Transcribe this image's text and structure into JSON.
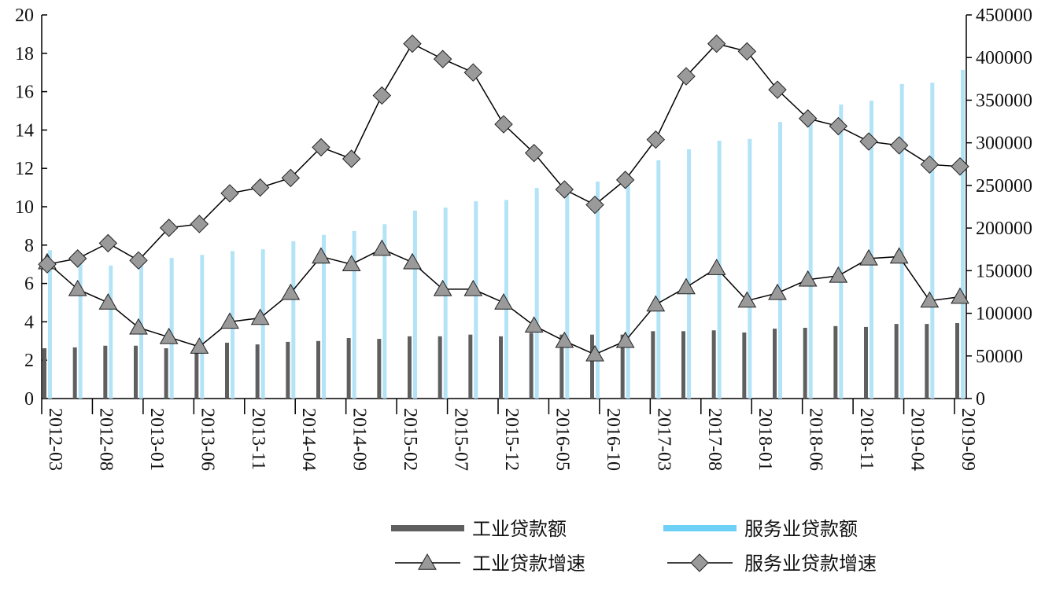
{
  "chart_data": {
    "type": "combo",
    "xticks": [
      "2012-03",
      "2012-08",
      "2013-01",
      "2013-06",
      "2013-11",
      "2014-04",
      "2014-09",
      "2015-02",
      "2015-07",
      "2015-12",
      "2016-05",
      "2016-10",
      "2017-03",
      "2017-08",
      "2018-01",
      "2018-06",
      "2018-11",
      "2019-04",
      "2019-09"
    ],
    "ylim": [
      0,
      20
    ],
    "yticks": [
      0,
      2,
      4,
      6,
      8,
      10,
      12,
      14,
      16,
      18,
      20
    ],
    "y2lim": [
      0,
      450000
    ],
    "y2ticks": [
      0,
      50000,
      100000,
      150000,
      200000,
      250000,
      300000,
      350000,
      400000,
      450000
    ],
    "series": [
      {
        "name": "工业贷款额",
        "type": "bar",
        "axis": "y2",
        "color": "#5f5f5f",
        "values": [
          59000,
          60000,
          62000,
          62000,
          59000,
          60000,
          65500,
          63500,
          66500,
          67500,
          71000,
          70000,
          73000,
          73000,
          75000,
          73000,
          77000,
          75000,
          75000,
          75000,
          79000,
          79000,
          80000,
          77500,
          82000,
          83000,
          85000,
          84000,
          87500,
          87500,
          88500
        ]
      },
      {
        "name": "服务业贷款额",
        "type": "bar",
        "axis": "y2",
        "color": "#b3e3f7",
        "values": [
          174000,
          170500,
          156000,
          156000,
          165000,
          168500,
          173000,
          175000,
          184500,
          192000,
          196500,
          204500,
          220500,
          224000,
          231500,
          233000,
          247000,
          250000,
          254500,
          256500,
          279500,
          292500,
          302500,
          304500,
          324500,
          327500,
          345000,
          349500,
          369000,
          370500,
          385500
        ]
      },
      {
        "name": "工业贷款增速",
        "type": "line",
        "marker": "triangle",
        "color": "#000000",
        "values": [
          7.1,
          5.7,
          5.0,
          3.7,
          3.2,
          2.7,
          4.0,
          4.2,
          5.5,
          7.4,
          7.0,
          7.8,
          7.1,
          5.7,
          5.7,
          5.0,
          3.8,
          3.0,
          2.3,
          3.0,
          4.9,
          5.8,
          6.8,
          5.1,
          5.5,
          6.2,
          6.4,
          7.3,
          7.4,
          5.1,
          5.3
        ]
      },
      {
        "name": "服务业贷款增速",
        "type": "line",
        "marker": "diamond",
        "color": "#000000",
        "values": [
          7.0,
          7.3,
          8.1,
          7.2,
          8.9,
          9.1,
          10.7,
          11.0,
          11.5,
          13.1,
          12.5,
          15.8,
          18.5,
          17.7,
          17.0,
          14.3,
          12.8,
          10.9,
          10.1,
          11.4,
          13.5,
          16.8,
          18.5,
          18.1,
          16.1,
          14.6,
          14.2,
          13.4,
          13.2,
          12.2,
          12.1
        ]
      }
    ]
  }
}
